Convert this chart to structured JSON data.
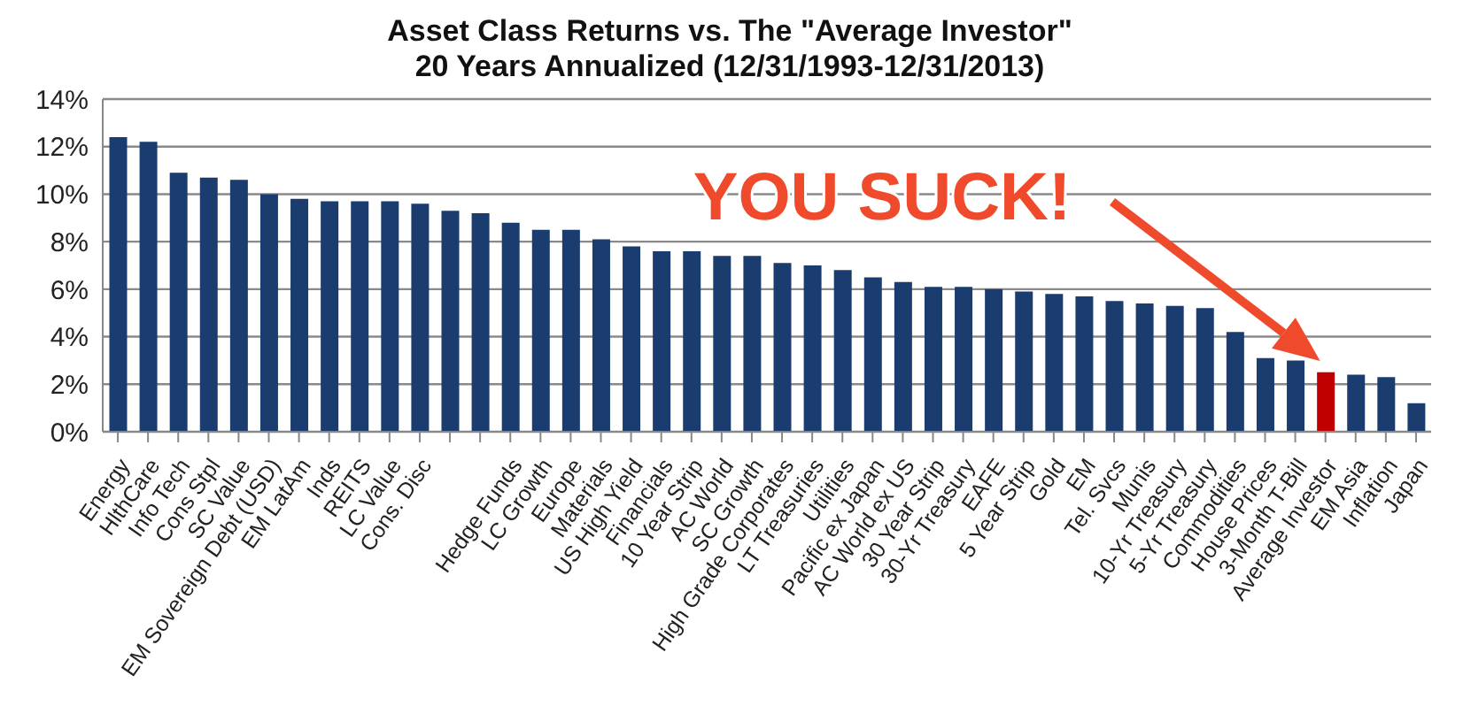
{
  "chart_data": {
    "type": "bar",
    "title": "Asset Class Returns vs. The \"Average Investor\"",
    "subtitle": "20 Years Annualized (12/31/1993-12/31/2013)",
    "categories": [
      "Energy",
      "HlthCare",
      "Info Tech",
      "Cons Stpl",
      "SC Value",
      "EM Sovereign Debt (USD)",
      "EM LatAm",
      "Inds",
      "REITS",
      "LC Value",
      "Cons. Disc",
      null,
      null,
      "Hedge Funds",
      "LC Growth",
      "Europe",
      "Materials",
      "US High Yield",
      "Financials",
      "10 Year Strip",
      "AC World",
      "SC Growth",
      "High Grade Corporates",
      "LT Treasuries",
      "Utilities",
      "Pacific ex Japan",
      "AC World ex US",
      "30 Year Strip",
      "30-Yr Treasury",
      "EAFE",
      "5 Year Strip",
      "Gold",
      "EM",
      "Tel. Svcs",
      "Munis",
      "10-Yr Treasury",
      "5-Yr Treasury",
      "Commodities",
      "House Prices",
      "3-Month T-Bill",
      "Average Investor",
      "EM Asia",
      "Inflation",
      "Japan"
    ],
    "values": [
      12.4,
      12.2,
      10.9,
      10.7,
      10.6,
      10.0,
      9.8,
      9.7,
      9.7,
      9.7,
      9.6,
      9.3,
      9.2,
      8.8,
      8.5,
      8.5,
      8.1,
      7.8,
      7.6,
      7.6,
      7.4,
      7.4,
      7.1,
      7.0,
      6.8,
      6.5,
      6.3,
      6.1,
      6.1,
      6.0,
      5.9,
      5.8,
      5.7,
      5.5,
      5.4,
      5.3,
      5.2,
      4.2,
      3.1,
      3.0,
      2.5,
      2.4,
      2.3,
      1.2
    ],
    "colors": [
      "#1b3c6e",
      "#1b3c6e",
      "#1b3c6e",
      "#1b3c6e",
      "#1b3c6e",
      "#1b3c6e",
      "#1b3c6e",
      "#1b3c6e",
      "#1b3c6e",
      "#1b3c6e",
      "#1b3c6e",
      "#1b3c6e",
      "#1b3c6e",
      "#1b3c6e",
      "#1b3c6e",
      "#1b3c6e",
      "#1b3c6e",
      "#1b3c6e",
      "#1b3c6e",
      "#1b3c6e",
      "#1b3c6e",
      "#1b3c6e",
      "#1b3c6e",
      "#1b3c6e",
      "#1b3c6e",
      "#1b3c6e",
      "#1b3c6e",
      "#1b3c6e",
      "#1b3c6e",
      "#1b3c6e",
      "#1b3c6e",
      "#1b3c6e",
      "#1b3c6e",
      "#1b3c6e",
      "#1b3c6e",
      "#1b3c6e",
      "#1b3c6e",
      "#1b3c6e",
      "#1b3c6e",
      "#1b3c6e",
      "#c00000",
      "#1b3c6e",
      "#1b3c6e",
      "#1b3c6e"
    ],
    "ylim": [
      0,
      14
    ],
    "yticks": [
      {
        "value": 0,
        "label": "0%"
      },
      {
        "value": 2,
        "label": "2%"
      },
      {
        "value": 4,
        "label": "4%"
      },
      {
        "value": 6,
        "label": "6%"
      },
      {
        "value": 8,
        "label": "8%"
      },
      {
        "value": 10,
        "label": "10%"
      },
      {
        "value": 12,
        "label": "12%"
      },
      {
        "value": 14,
        "label": "14%"
      }
    ],
    "grid": "y",
    "legend": false,
    "annotations": [
      "YOU SUCK!"
    ]
  }
}
